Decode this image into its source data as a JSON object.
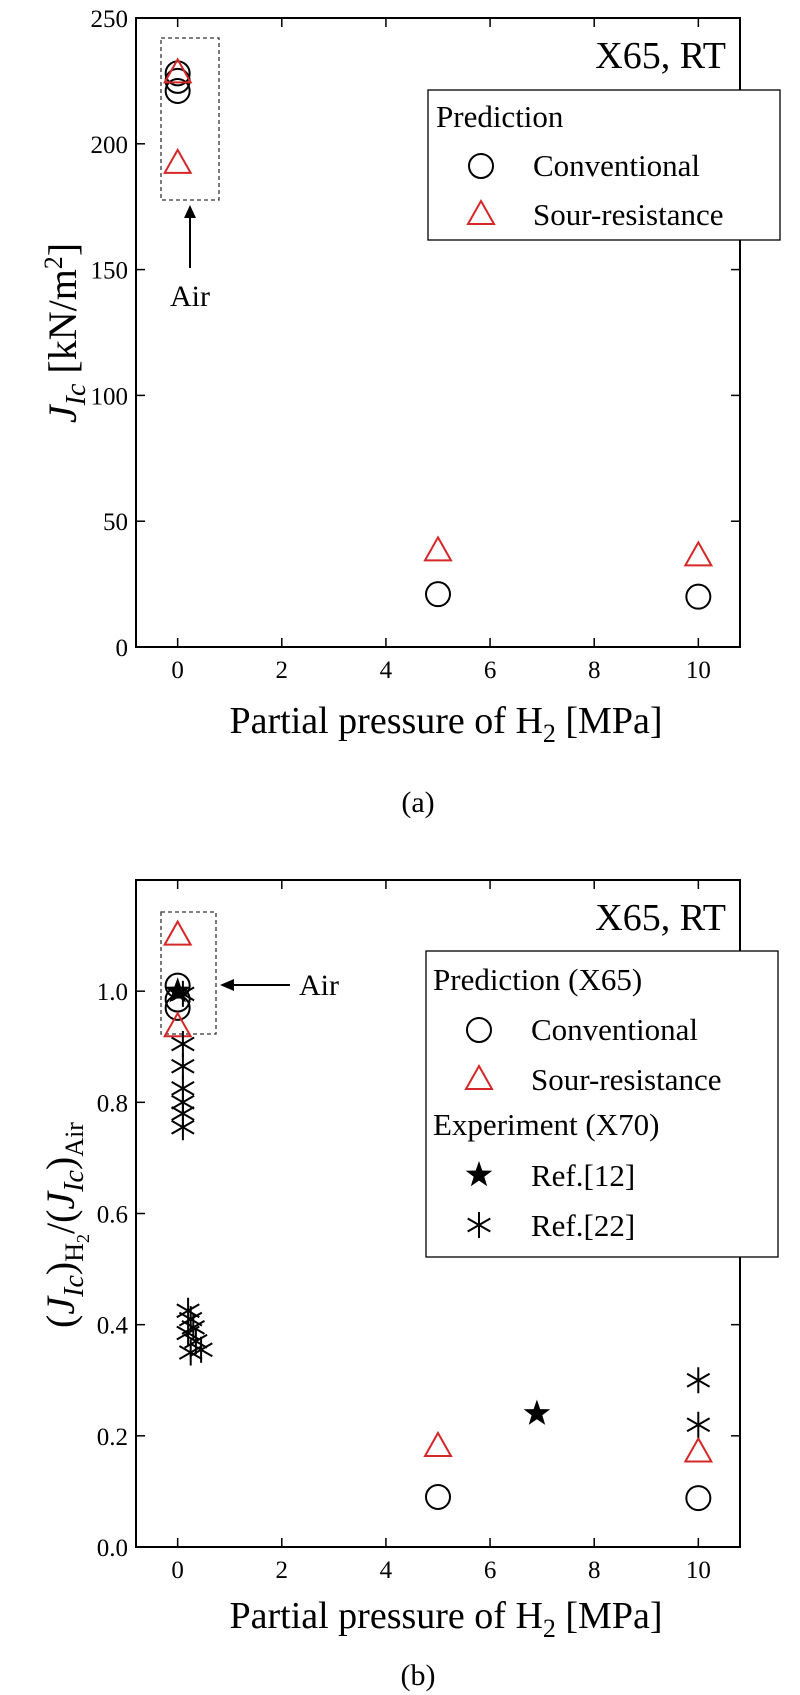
{
  "chart_data": [
    {
      "type": "scatter",
      "panel_caption": "(a)",
      "title": "X65, RT",
      "xlabel": "Partial pressure of H₂ [MPa]",
      "ylabel": "J_Ic [kN/m²]",
      "xlim": [
        -0.8,
        10.8
      ],
      "ylim": [
        0,
        250
      ],
      "xticks": [
        0,
        2,
        4,
        6,
        8,
        10
      ],
      "yticks": [
        0,
        50,
        100,
        150,
        200,
        250
      ],
      "ytick_labels": [
        "0",
        "50",
        "100",
        "150",
        "200",
        "250"
      ],
      "legend": {
        "title": "Prediction",
        "placement": "top-right"
      },
      "annotation": {
        "text": "Air",
        "x": 0,
        "y": 176
      },
      "series": [
        {
          "name": "Conventional",
          "marker": "circle",
          "color": "#000000",
          "points": [
            [
              0,
              228
            ],
            [
              0,
              225
            ],
            [
              0,
              221
            ],
            [
              5,
              21
            ],
            [
              10,
              20
            ]
          ]
        },
        {
          "name": "Sour-resistance",
          "marker": "triangle",
          "color": "#d62728",
          "points": [
            [
              0,
              228
            ],
            [
              0,
              192
            ],
            [
              5,
              38
            ],
            [
              10,
              36
            ]
          ]
        }
      ]
    },
    {
      "type": "scatter",
      "panel_caption": "(b)",
      "title": "X65, RT",
      "xlabel": "Partial pressure of H₂ [MPa]",
      "ylabel": "(J_Ic)_H₂/(J_Ic)_Air",
      "xlim": [
        -0.8,
        10.8
      ],
      "ylim": [
        0,
        1.2
      ],
      "xticks": [
        0,
        2,
        4,
        6,
        8,
        10
      ],
      "yticks": [
        0,
        0.2,
        0.4,
        0.6,
        0.8,
        1.0
      ],
      "ytick_labels": [
        "0.0",
        "0.2",
        "0.4",
        "0.6",
        "0.8",
        "1.0"
      ],
      "legend": {
        "placement": "top-right"
      },
      "annotation": {
        "text": "Air",
        "x": 0,
        "y": 1.0
      },
      "series": [
        {
          "name": "Conventional",
          "group": "Prediction (X65)",
          "marker": "circle",
          "color": "#000000",
          "points": [
            [
              0,
              1.01
            ],
            [
              0,
              0.985
            ],
            [
              0,
              0.97
            ],
            [
              5,
              0.09
            ],
            [
              10,
              0.088
            ]
          ]
        },
        {
          "name": "Sour-resistance",
          "group": "Prediction (X65)",
          "marker": "triangle",
          "color": "#d62728",
          "points": [
            [
              0,
              1.1
            ],
            [
              0,
              0.935
            ],
            [
              5,
              0.18
            ],
            [
              10,
              0.17
            ]
          ]
        },
        {
          "name": "Ref.[12]",
          "group": "Experiment (X70)",
          "marker": "star",
          "color": "#000000",
          "points": [
            [
              0,
              1.0
            ],
            [
              6.9,
              0.24
            ]
          ]
        },
        {
          "name": "Ref.[22]",
          "group": "Experiment (X70)",
          "marker": "asterisk",
          "color": "#000000",
          "points": [
            [
              0.1,
              0.995
            ],
            [
              0.1,
              0.905
            ],
            [
              0.1,
              0.865
            ],
            [
              0.1,
              0.825
            ],
            [
              0.1,
              0.8
            ],
            [
              0.1,
              0.78
            ],
            [
              0.1,
              0.755
            ],
            [
              0.2,
              0.425
            ],
            [
              0.25,
              0.41
            ],
            [
              0.3,
              0.395
            ],
            [
              0.2,
              0.385
            ],
            [
              0.35,
              0.37
            ],
            [
              0.25,
              0.35
            ],
            [
              0.45,
              0.355
            ],
            [
              10,
              0.3
            ],
            [
              10,
              0.22
            ]
          ]
        }
      ]
    }
  ]
}
